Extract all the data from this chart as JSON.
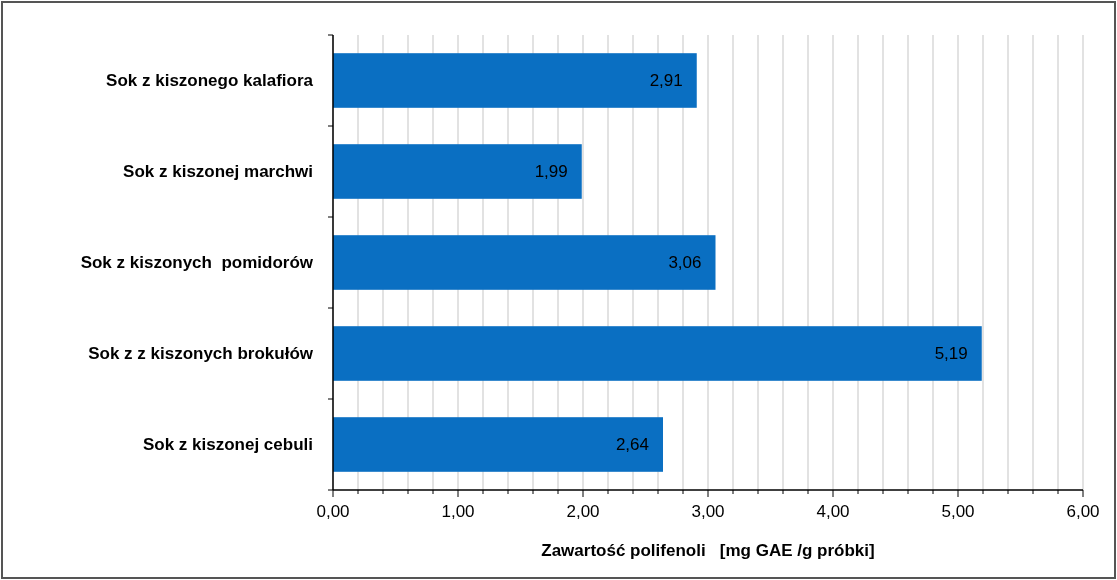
{
  "chart_data": {
    "type": "bar",
    "orientation": "horizontal",
    "xlabel": "Zawartość polifenoli   [mg GAE /g próbki]",
    "categories": [
      "Sok z kiszonego kalafiora",
      "Sok z kiszonej marchwi",
      "Sok z kiszonych  pomidorów",
      "Sok z z kiszonych brokułów",
      "Sok z kiszonej cebuli"
    ],
    "values": [
      2.91,
      1.99,
      3.06,
      5.19,
      2.64
    ],
    "value_labels": [
      "2,91",
      "1,99",
      "3,06",
      "5,19",
      "2,64"
    ],
    "color": "#0a6fc2",
    "xlim": [
      0,
      6
    ],
    "xticks": [
      {
        "value": 0,
        "label": "0,00"
      },
      {
        "value": 0.2,
        "label": null
      },
      {
        "value": 0.4,
        "label": null
      },
      {
        "value": 0.6,
        "label": null
      },
      {
        "value": 0.8,
        "label": null
      },
      {
        "value": 1,
        "label": "1,00"
      },
      {
        "value": 1.2,
        "label": null
      },
      {
        "value": 1.4,
        "label": null
      },
      {
        "value": 1.6,
        "label": null
      },
      {
        "value": 1.8,
        "label": null
      },
      {
        "value": 2,
        "label": "2,00"
      },
      {
        "value": 2.2,
        "label": null
      },
      {
        "value": 2.4,
        "label": null
      },
      {
        "value": 2.6,
        "label": null
      },
      {
        "value": 2.8,
        "label": null
      },
      {
        "value": 3,
        "label": "3,00"
      },
      {
        "value": 3.2,
        "label": null
      },
      {
        "value": 3.4,
        "label": null
      },
      {
        "value": 3.6,
        "label": null
      },
      {
        "value": 3.8,
        "label": null
      },
      {
        "value": 4,
        "label": "4,00"
      },
      {
        "value": 4.2,
        "label": null
      },
      {
        "value": 4.4,
        "label": null
      },
      {
        "value": 4.6,
        "label": null
      },
      {
        "value": 4.8,
        "label": null
      },
      {
        "value": 5,
        "label": "5,00"
      },
      {
        "value": 5.2,
        "label": null
      },
      {
        "value": 5.4,
        "label": null
      },
      {
        "value": 5.6,
        "label": null
      },
      {
        "value": 5.8,
        "label": null
      },
      {
        "value": 6,
        "label": "6,00"
      }
    ],
    "grid": "x"
  }
}
